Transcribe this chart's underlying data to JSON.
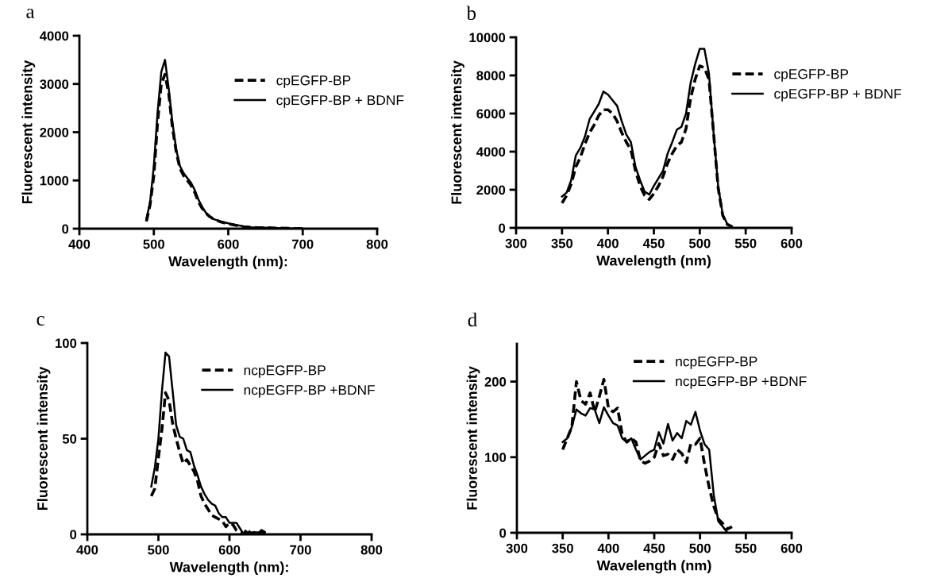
{
  "chart_data": [
    {
      "type": "line",
      "title": "a",
      "xlabel": "Wavelength (nm):",
      "ylabel": "Fluorescent intensity",
      "xlim": [
        400,
        800
      ],
      "xticks": [
        400,
        500,
        600,
        700,
        800
      ],
      "ylim": [
        0,
        4000
      ],
      "yticks": [
        0,
        1000,
        2000,
        3000,
        4000
      ],
      "legend": "top right",
      "grid": false,
      "series": [
        {
          "name": "cpEGFP-BP",
          "color": "#000000",
          "line_style": "dashed",
          "x": [
            490,
            495,
            500,
            505,
            510,
            515,
            520,
            525,
            530,
            535,
            540,
            545,
            550,
            555,
            560,
            565,
            570,
            575,
            580,
            590,
            600,
            610,
            620,
            630,
            640,
            650,
            670,
            700
          ],
          "values": [
            150,
            500,
            1100,
            2200,
            3000,
            3200,
            2800,
            2100,
            1600,
            1250,
            1100,
            1000,
            900,
            750,
            550,
            420,
            320,
            250,
            200,
            140,
            100,
            70,
            40,
            30,
            20,
            20,
            10,
            0
          ]
        },
        {
          "name": "cpEGFP-BP + BDNF",
          "color": "#000000",
          "line_style": "solid",
          "x": [
            490,
            495,
            500,
            505,
            510,
            515,
            520,
            525,
            530,
            535,
            540,
            545,
            550,
            555,
            560,
            565,
            570,
            575,
            580,
            590,
            600,
            610,
            620,
            630,
            640,
            650,
            670,
            700
          ],
          "values": [
            200,
            550,
            1300,
            2400,
            3250,
            3500,
            2900,
            2200,
            1650,
            1300,
            1150,
            1050,
            950,
            800,
            600,
            450,
            330,
            260,
            200,
            150,
            110,
            80,
            50,
            30,
            20,
            20,
            10,
            0
          ]
        }
      ]
    },
    {
      "type": "line",
      "title": "b",
      "xlabel": "Wavelength (nm)",
      "ylabel": "Fluorescent intensity",
      "xlim": [
        300,
        600
      ],
      "xticks": [
        300,
        350,
        400,
        450,
        500,
        550,
        600
      ],
      "ylim": [
        0,
        10000
      ],
      "yticks": [
        0,
        2000,
        4000,
        6000,
        8000,
        10000
      ],
      "legend": "right",
      "grid": false,
      "series": [
        {
          "name": "cpEGFP-BP",
          "color": "#000000",
          "line_style": "dashed",
          "x": [
            350,
            355,
            360,
            365,
            370,
            375,
            380,
            385,
            390,
            395,
            400,
            405,
            410,
            415,
            420,
            425,
            430,
            435,
            440,
            445,
            450,
            455,
            460,
            465,
            470,
            475,
            480,
            485,
            490,
            495,
            500,
            505,
            510,
            515,
            520,
            525,
            530,
            535
          ],
          "values": [
            1300,
            1700,
            2300,
            3200,
            3700,
            4400,
            5000,
            5400,
            5900,
            6200,
            6200,
            6000,
            5600,
            5000,
            4500,
            4100,
            3000,
            2200,
            1700,
            1500,
            1800,
            2200,
            2700,
            3400,
            3900,
            4300,
            4500,
            5200,
            6800,
            7800,
            8500,
            8400,
            7800,
            5000,
            2100,
            650,
            180,
            60
          ]
        },
        {
          "name": "cpEGFP-BP + BDNF",
          "color": "#000000",
          "line_style": "solid",
          "x": [
            350,
            355,
            360,
            365,
            370,
            375,
            380,
            385,
            390,
            395,
            400,
            405,
            410,
            415,
            420,
            425,
            430,
            435,
            440,
            445,
            450,
            455,
            460,
            465,
            470,
            475,
            480,
            485,
            490,
            495,
            500,
            505,
            510,
            515,
            520,
            525,
            530,
            535
          ],
          "values": [
            1650,
            1850,
            2500,
            3800,
            4200,
            4800,
            5700,
            6100,
            6500,
            7150,
            7000,
            6700,
            6400,
            5600,
            4900,
            4500,
            3200,
            2500,
            1900,
            1750,
            2200,
            2600,
            3000,
            3900,
            4500,
            5150,
            5300,
            6000,
            7600,
            8600,
            9400,
            9400,
            8100,
            5000,
            2200,
            700,
            200,
            80
          ]
        }
      ]
    },
    {
      "type": "line",
      "title": "c",
      "xlabel": "Wavelength (nm):",
      "ylabel": "Fluorescent intensity",
      "xlim": [
        400,
        800
      ],
      "xticks": [
        400,
        500,
        600,
        700,
        800
      ],
      "ylim": [
        0,
        100
      ],
      "yticks": [
        0,
        50,
        100
      ],
      "legend": "top right",
      "grid": false,
      "series": [
        {
          "name": "ncpEGFP-BP",
          "color": "#000000",
          "line_style": "dashed",
          "x": [
            490,
            495,
            500,
            505,
            510,
            515,
            520,
            525,
            530,
            535,
            540,
            545,
            550,
            555,
            560,
            565,
            570,
            575,
            580,
            585,
            590,
            595,
            600,
            605,
            610,
            615,
            620,
            625,
            630,
            635,
            640,
            645,
            650
          ],
          "values": [
            20,
            24,
            40,
            55,
            74,
            70,
            58,
            50,
            43,
            37,
            39,
            36,
            33,
            28,
            20,
            16,
            13,
            10,
            9,
            8,
            7,
            4,
            6,
            5,
            2,
            1,
            0,
            3,
            0,
            1,
            0,
            2,
            1
          ]
        },
        {
          "name": "ncpEGFP-BP +BDNF",
          "color": "#000000",
          "line_style": "solid",
          "x": [
            490,
            495,
            500,
            505,
            510,
            515,
            520,
            525,
            530,
            535,
            540,
            545,
            550,
            555,
            560,
            565,
            570,
            575,
            580,
            585,
            590,
            595,
            600,
            605,
            610,
            615,
            620,
            625,
            630,
            640,
            650
          ],
          "values": [
            25,
            35,
            50,
            75,
            95,
            93,
            75,
            57,
            51,
            50,
            44,
            43,
            36,
            31,
            25,
            21,
            18,
            16,
            15,
            11,
            9,
            9,
            6,
            6,
            6,
            3,
            0,
            1,
            1,
            1,
            1
          ]
        }
      ]
    },
    {
      "type": "line",
      "title": "d",
      "xlabel": "Wavelength (nm)",
      "ylabel": "Fluorescent intensity",
      "xlim": [
        300,
        600
      ],
      "xticks": [
        300,
        350,
        400,
        450,
        500,
        550,
        600
      ],
      "ylim": [
        0,
        250
      ],
      "yticks": [
        0,
        100,
        200
      ],
      "legend": "top right",
      "grid": false,
      "series": [
        {
          "name": "ncpEGFP-BP",
          "color": "#000000",
          "line_style": "dashed",
          "x": [
            350,
            355,
            360,
            365,
            370,
            375,
            380,
            385,
            390,
            395,
            400,
            405,
            410,
            415,
            420,
            425,
            430,
            435,
            440,
            445,
            450,
            455,
            460,
            465,
            470,
            475,
            480,
            485,
            490,
            495,
            500,
            505,
            510,
            515,
            520,
            525,
            530,
            535
          ],
          "values": [
            110,
            125,
            140,
            200,
            175,
            170,
            185,
            160,
            180,
            203,
            165,
            160,
            165,
            130,
            120,
            125,
            120,
            95,
            92,
            95,
            100,
            118,
            102,
            104,
            97,
            110,
            105,
            93,
            118,
            117,
            125,
            90,
            60,
            35,
            18,
            12,
            5,
            8
          ]
        },
        {
          "name": "ncpEGFP-BP +BDNF",
          "color": "#000000",
          "line_style": "solid",
          "x": [
            350,
            355,
            360,
            365,
            370,
            375,
            380,
            385,
            390,
            395,
            400,
            405,
            410,
            415,
            420,
            425,
            430,
            435,
            440,
            445,
            450,
            455,
            460,
            465,
            470,
            475,
            480,
            485,
            490,
            495,
            500,
            505,
            510,
            515,
            520,
            525,
            530
          ],
          "values": [
            120,
            125,
            140,
            163,
            158,
            155,
            165,
            163,
            145,
            166,
            155,
            145,
            142,
            125,
            120,
            125,
            110,
            97,
            102,
            107,
            110,
            133,
            118,
            144,
            122,
            132,
            125,
            148,
            143,
            160,
            135,
            117,
            110,
            50,
            15,
            8,
            0
          ]
        }
      ]
    }
  ]
}
